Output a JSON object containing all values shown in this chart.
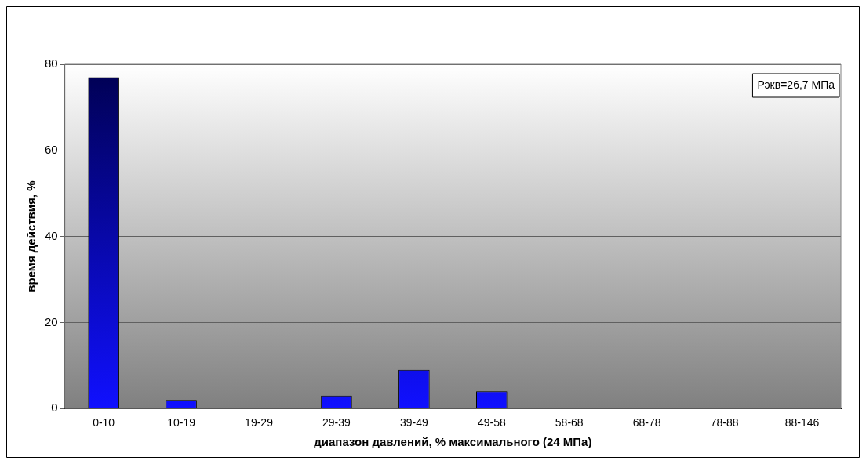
{
  "chart_data": {
    "type": "bar",
    "xlabel": "диапазон давлений, % максимального (24 МПа)",
    "ylabel": "время действия, %",
    "categories": [
      "0-10",
      "10-19",
      "19-29",
      "29-39",
      "39-49",
      "49-58",
      "58-68",
      "68-78",
      "78-88",
      "88-146"
    ],
    "values": [
      77,
      2,
      0,
      3,
      9,
      4,
      0,
      0,
      0,
      0
    ],
    "color": "#1010ff",
    "ylim": [
      0,
      80
    ],
    "yticks": [
      0,
      20,
      40,
      60,
      80
    ],
    "grid": "y",
    "annotations": [
      "Рэкв=26,7 МПа"
    ]
  }
}
